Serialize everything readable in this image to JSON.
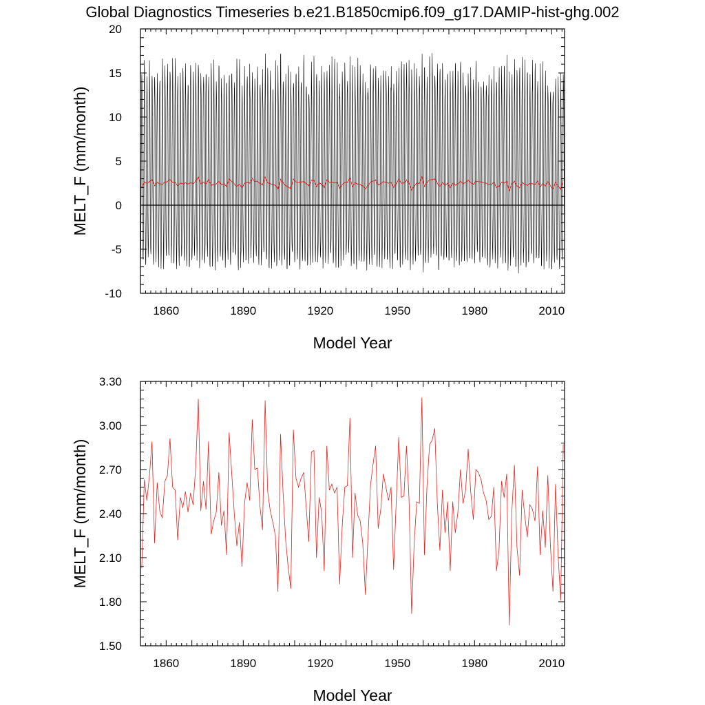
{
  "title": "Global Diagnostics Timeseries b.e21.B1850cmip6.f09_g17.DAMIP-hist-ghg.002",
  "chart_data": [
    {
      "type": "line",
      "xlabel": "Model Year",
      "ylabel": "MELT_F (mm/month)",
      "xlim": [
        1850,
        2015
      ],
      "ylim": [
        -10,
        20
      ],
      "x_ticks": [
        "1860",
        "1890",
        "1920",
        "1950",
        "1980",
        "2010"
      ],
      "y_ticks": [
        "-10",
        "-5",
        "0",
        "5",
        "10",
        "15",
        "20"
      ],
      "zero_line": true,
      "series_colors": {
        "monthly": "#000000",
        "annual": "#e8201c"
      },
      "monthly_note": "monthly series oscillates seasonally roughly between -7.5 and +14 mm/month, peaks up to ~17 mm/month"
    },
    {
      "type": "line",
      "xlabel": "Model Year",
      "ylabel": "MELT_F (mm/month)",
      "xlim": [
        1850,
        2015
      ],
      "ylim": [
        1.5,
        3.3
      ],
      "x_ticks": [
        "1860",
        "1890",
        "1920",
        "1950",
        "1980",
        "2010"
      ],
      "y_ticks": [
        "1.50",
        "1.80",
        "2.10",
        "2.40",
        "2.70",
        "3.00",
        "3.30"
      ],
      "series_colors": {
        "annual": "#e8201c"
      },
      "x": [
        1850,
        1851,
        1852,
        1853,
        1854,
        1855,
        1856,
        1857,
        1858,
        1859,
        1860,
        1861,
        1862,
        1863,
        1864,
        1865,
        1866,
        1867,
        1868,
        1869,
        1870,
        1871,
        1872,
        1873,
        1874,
        1875,
        1876,
        1877,
        1878,
        1879,
        1880,
        1881,
        1882,
        1883,
        1884,
        1885,
        1886,
        1887,
        1888,
        1889,
        1890,
        1891,
        1892,
        1893,
        1894,
        1895,
        1896,
        1897,
        1898,
        1899,
        1900,
        1901,
        1902,
        1903,
        1904,
        1905,
        1906,
        1907,
        1908,
        1909,
        1910,
        1911,
        1912,
        1913,
        1914,
        1915,
        1916,
        1917,
        1918,
        1919,
        1920,
        1921,
        1922,
        1923,
        1924,
        1925,
        1926,
        1927,
        1928,
        1929,
        1930,
        1931,
        1932,
        1933,
        1934,
        1935,
        1936,
        1937,
        1938,
        1939,
        1940,
        1941,
        1942,
        1943,
        1944,
        1945,
        1946,
        1947,
        1948,
        1949,
        1950,
        1951,
        1952,
        1953,
        1954,
        1955,
        1956,
        1957,
        1958,
        1959,
        1960,
        1961,
        1962,
        1963,
        1964,
        1965,
        1966,
        1967,
        1968,
        1969,
        1970,
        1971,
        1972,
        1973,
        1974,
        1975,
        1976,
        1977,
        1978,
        1979,
        1980,
        1981,
        1982,
        1983,
        1984,
        1985,
        1986,
        1987,
        1988,
        1989,
        1990,
        1991,
        1992,
        1993,
        1994,
        1995,
        1996,
        1997,
        1998,
        1999,
        2000,
        2001,
        2002,
        2003,
        2004,
        2005,
        2006,
        2007,
        2008,
        2009,
        2010,
        2011,
        2012,
        2013,
        2014
      ],
      "values": [
        2.03,
        2.63,
        2.49,
        2.66,
        2.89,
        2.2,
        2.61,
        2.42,
        2.37,
        2.62,
        2.66,
        2.91,
        2.58,
        2.56,
        2.22,
        2.51,
        2.44,
        2.55,
        2.41,
        2.54,
        2.46,
        2.72,
        3.18,
        2.42,
        2.62,
        2.43,
        2.89,
        2.26,
        2.35,
        2.41,
        2.68,
        2.32,
        2.42,
        2.12,
        2.95,
        2.68,
        2.4,
        2.18,
        2.34,
        2.04,
        2.47,
        2.61,
        2.49,
        3.04,
        2.7,
        2.71,
        2.45,
        2.29,
        3.17,
        2.55,
        2.42,
        2.34,
        2.25,
        1.87,
        2.94,
        2.54,
        2.22,
        2.03,
        1.89,
        2.97,
        2.64,
        2.58,
        2.64,
        2.68,
        2.44,
        2.21,
        2.82,
        2.83,
        2.1,
        2.51,
        2.41,
        2.01,
        2.86,
        2.56,
        2.6,
        2.54,
        2.58,
        1.92,
        2.32,
        2.58,
        2.59,
        3.05,
        2.1,
        2.54,
        2.39,
        2.35,
        2.2,
        1.85,
        2.23,
        2.59,
        2.74,
        2.86,
        2.3,
        2.43,
        2.67,
        2.58,
        2.49,
        2.58,
        2.02,
        2.48,
        2.92,
        2.51,
        2.52,
        2.86,
        2.5,
        1.72,
        2.2,
        2.48,
        2.47,
        3.19,
        2.12,
        2.6,
        2.87,
        2.9,
        2.98,
        2.47,
        2.15,
        2.56,
        2.27,
        2.48,
        2.01,
        2.48,
        2.27,
        2.41,
        2.7,
        2.47,
        2.56,
        2.84,
        2.55,
        2.36,
        2.7,
        2.68,
        2.63,
        2.54,
        2.49,
        2.36,
        2.38,
        2.58,
        2.01,
        2.15,
        2.62,
        2.51,
        2.67,
        1.64,
        2.42,
        2.73,
        2.17,
        1.98,
        2.56,
        2.39,
        2.24,
        2.46,
        2.43,
        2.35,
        2.72,
        2.12,
        2.42,
        2.17,
        2.66,
        2.18,
        1.87,
        2.6,
        2.11,
        1.81,
        2.87
      ]
    }
  ]
}
